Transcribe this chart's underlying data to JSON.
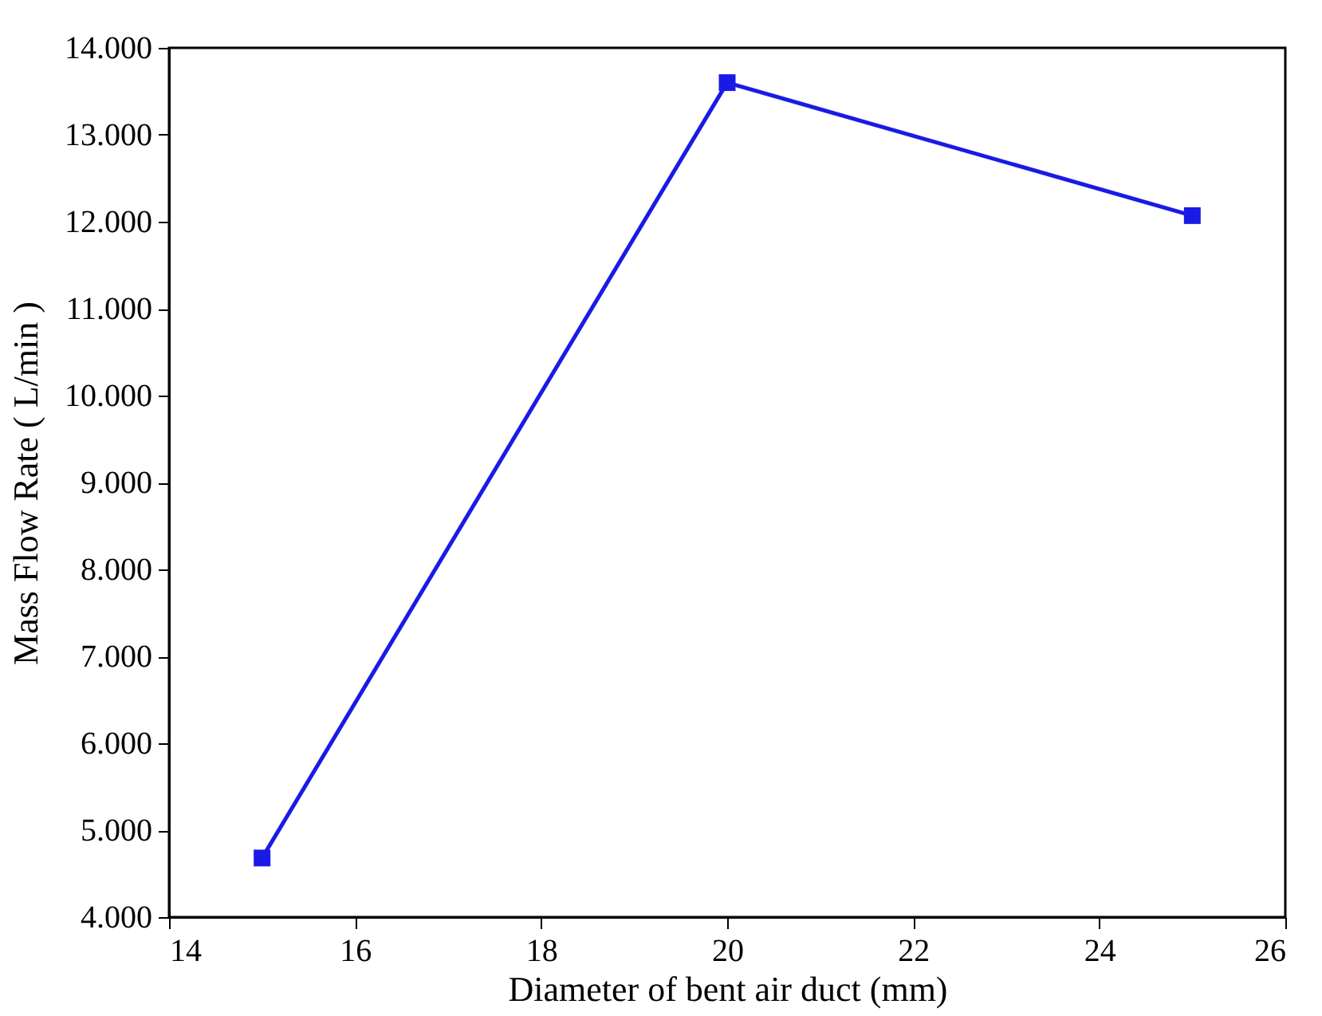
{
  "chart_data": {
    "type": "line",
    "xlabel": "Diameter of bent air duct (mm)",
    "ylabel": "Mass Flow Rate ( L/min )",
    "x": [
      15,
      20,
      25
    ],
    "series": [
      {
        "color": "#1a1ae6",
        "values": [
          4.68,
          13.6,
          12.07
        ]
      }
    ],
    "xlim": [
      14,
      26
    ],
    "xticks": [
      14,
      16,
      18,
      20,
      22,
      24,
      26
    ],
    "ylim": [
      4,
      14
    ],
    "yticks": [
      {
        "value": 4,
        "label": "4.000"
      },
      {
        "value": 5,
        "label": "5.000"
      },
      {
        "value": 6,
        "label": "6.000"
      },
      {
        "value": 7,
        "label": "7.000"
      },
      {
        "value": 8,
        "label": "8.000"
      },
      {
        "value": 9,
        "label": "9.000"
      },
      {
        "value": 10,
        "label": "10.000"
      },
      {
        "value": 11,
        "label": "11.000"
      },
      {
        "value": 12,
        "label": "12.000"
      },
      {
        "value": 13,
        "label": "13.000"
      },
      {
        "value": 14,
        "label": "14.000"
      }
    ],
    "grid": false,
    "marker": "square",
    "line_style": "solid"
  }
}
